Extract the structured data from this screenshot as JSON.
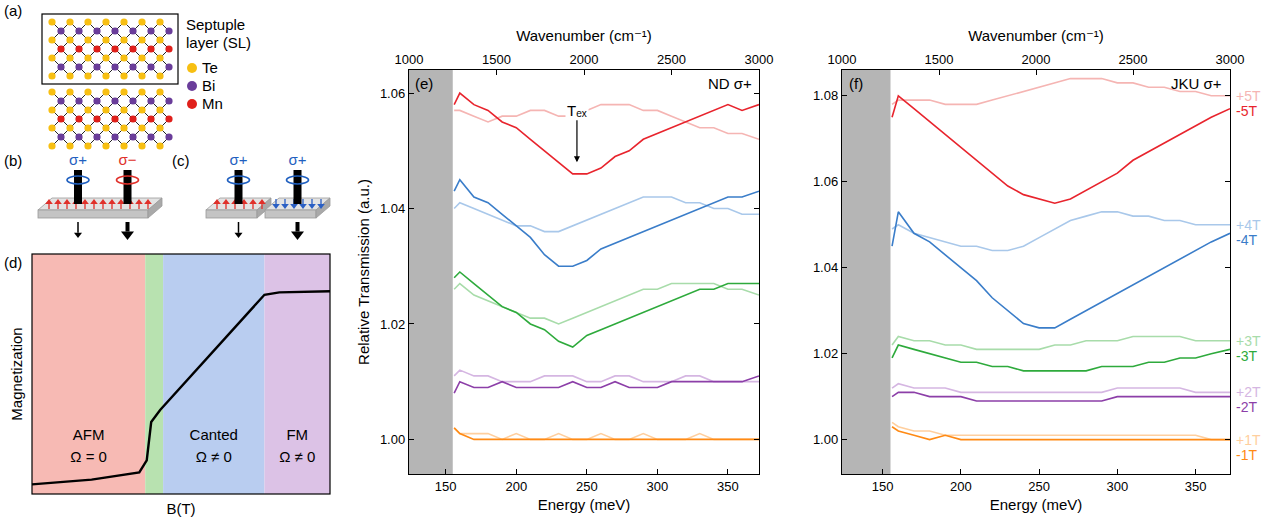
{
  "diagram": {
    "a": {
      "letter": "(a)",
      "box_label": "Septuple layer (SL)",
      "sequence": [
        "Te",
        "Bi",
        "Te",
        "Mn",
        "Te",
        "Bi",
        "Te"
      ],
      "atoms": [
        {
          "label": "Te",
          "color": "#f7bf12"
        },
        {
          "label": "Bi",
          "color": "#6a3d9a"
        },
        {
          "label": "Mn",
          "color": "#e0201b"
        }
      ]
    },
    "b": {
      "letter": "(b)",
      "beams": [
        {
          "label": "σ+",
          "color": "#1f5fbf"
        },
        {
          "label": "σ−",
          "color": "#e0302a"
        }
      ],
      "spins": [
        {
          "direction": "up",
          "color": "#e0302a"
        }
      ]
    },
    "c": {
      "letter": "(c)",
      "beams": [
        {
          "label": "σ+",
          "color": "#1f5fbf"
        },
        {
          "label": "σ+",
          "color": "#1f5fbf"
        }
      ],
      "spins": [
        {
          "direction": "up",
          "color": "#e0302a"
        },
        {
          "direction": "down",
          "color": "#2a5fc4"
        }
      ]
    },
    "d": {
      "letter": "(d)",
      "y_label": "Magnetization",
      "x_label": "B(T)",
      "phases": [
        {
          "label": "AFM",
          "note": "Ω = 0",
          "color": "#f7bab4"
        },
        {
          "color": "#b8e2b0"
        },
        {
          "label": "Canted",
          "note": "Ω ≠ 0",
          "color": "#b9cdf0"
        },
        {
          "label": "FM",
          "note": "Ω ≠ 0",
          "color": "#dcc2e6"
        }
      ]
    }
  },
  "chart_data": [
    {
      "type": "line",
      "letter": "(e)",
      "title": "ND σ+",
      "xlabel": "Energy (meV)",
      "x2label": "Wavenumber (cm⁻¹)",
      "ylabel": "Relative Transmission (a.u.)",
      "xlim": [
        124,
        372
      ],
      "xticks": [
        150,
        200,
        250,
        300,
        350
      ],
      "x2lim": [
        1000,
        3000
      ],
      "x2ticks": [
        1000,
        1500,
        2000,
        2500,
        3000
      ],
      "ylim": [
        0.994,
        1.064
      ],
      "yticks": [
        {
          "value": 1.0,
          "label": "1.00"
        },
        {
          "value": 1.02,
          "label": "1.02"
        },
        {
          "value": 1.04,
          "label": "1.04"
        },
        {
          "value": 1.06,
          "label": "1.06"
        }
      ],
      "grid": false,
      "shaded_x": [
        124,
        155
      ],
      "annotations": [
        {
          "text": "Tₑₓ",
          "x": 243,
          "y": 1.048
        }
      ],
      "x": [
        156,
        160,
        170,
        180,
        190,
        200,
        210,
        220,
        230,
        240,
        250,
        260,
        270,
        280,
        290,
        300,
        310,
        320,
        330,
        340,
        350,
        360,
        372
      ],
      "series": [
        {
          "color": "#f5b5b3",
          "values": [
            1.057,
            1.057,
            1.056,
            1.055,
            1.056,
            1.056,
            1.057,
            1.057,
            1.056,
            1.056,
            1.057,
            1.058,
            1.058,
            1.058,
            1.057,
            1.057,
            1.056,
            1.055,
            1.054,
            1.054,
            1.053,
            1.053,
            1.052
          ]
        },
        {
          "color": "#e8242d",
          "values": [
            1.058,
            1.06,
            1.058,
            1.057,
            1.055,
            1.054,
            1.052,
            1.05,
            1.048,
            1.046,
            1.046,
            1.047,
            1.049,
            1.05,
            1.052,
            1.053,
            1.054,
            1.055,
            1.056,
            1.057,
            1.058,
            1.057,
            1.058
          ]
        },
        {
          "color": "#a9c8ea",
          "values": [
            1.04,
            1.041,
            1.04,
            1.039,
            1.038,
            1.037,
            1.037,
            1.036,
            1.036,
            1.037,
            1.038,
            1.039,
            1.04,
            1.041,
            1.042,
            1.042,
            1.042,
            1.041,
            1.041,
            1.04,
            1.04,
            1.039,
            1.039
          ]
        },
        {
          "color": "#3a7dc9",
          "values": [
            1.043,
            1.045,
            1.042,
            1.041,
            1.039,
            1.037,
            1.035,
            1.032,
            1.03,
            1.03,
            1.031,
            1.033,
            1.034,
            1.035,
            1.036,
            1.037,
            1.038,
            1.039,
            1.04,
            1.041,
            1.042,
            1.042,
            1.043
          ]
        },
        {
          "color": "#a8dcaa",
          "values": [
            1.026,
            1.027,
            1.025,
            1.024,
            1.023,
            1.022,
            1.021,
            1.021,
            1.02,
            1.021,
            1.022,
            1.023,
            1.024,
            1.025,
            1.026,
            1.026,
            1.027,
            1.027,
            1.027,
            1.027,
            1.026,
            1.026,
            1.025
          ]
        },
        {
          "color": "#2eaa3c",
          "values": [
            1.028,
            1.029,
            1.027,
            1.025,
            1.023,
            1.022,
            1.02,
            1.019,
            1.017,
            1.016,
            1.018,
            1.019,
            1.02,
            1.021,
            1.022,
            1.023,
            1.024,
            1.025,
            1.026,
            1.026,
            1.027,
            1.027,
            1.027
          ]
        },
        {
          "color": "#d5b6e2",
          "values": [
            1.011,
            1.012,
            1.011,
            1.011,
            1.01,
            1.01,
            1.01,
            1.011,
            1.011,
            1.011,
            1.01,
            1.01,
            1.011,
            1.011,
            1.01,
            1.01,
            1.01,
            1.011,
            1.011,
            1.01,
            1.01,
            1.01,
            1.01
          ]
        },
        {
          "color": "#8c3fa8",
          "values": [
            1.008,
            1.01,
            1.009,
            1.009,
            1.01,
            1.009,
            1.009,
            1.009,
            1.009,
            1.01,
            1.009,
            1.009,
            1.01,
            1.009,
            1.009,
            1.009,
            1.01,
            1.01,
            1.01,
            1.01,
            1.01,
            1.01,
            1.011
          ]
        },
        {
          "color": "#ffcf9e",
          "values": [
            1.002,
            1.001,
            1.001,
            1.001,
            1.0,
            1.001,
            1.0,
            1.0,
            1.001,
            1.0,
            1.0,
            1.001,
            1.0,
            1.0,
            1.001,
            1.0,
            1.0,
            1.0,
            1.001,
            1.0,
            1.0,
            1.0,
            1.0
          ]
        },
        {
          "color": "#ff8a14",
          "values": [
            1.002,
            1.001,
            1.0,
            1.0,
            1.0,
            1.0,
            1.0,
            1.0,
            1.0,
            1.0,
            1.0,
            1.0,
            1.0,
            1.0,
            1.0,
            1.0,
            1.0,
            1.0,
            1.0,
            1.0,
            1.0,
            1.0,
            1.0
          ]
        }
      ]
    },
    {
      "type": "line",
      "letter": "(f)",
      "title": "JKU σ+",
      "xlabel": "Energy (meV)",
      "x2label": "Wavenumber (cm⁻¹)",
      "xlim": [
        124,
        372
      ],
      "xticks": [
        150,
        200,
        250,
        300,
        350
      ],
      "x2lim": [
        1000,
        3000
      ],
      "x2ticks": [
        1000,
        1500,
        2000,
        2500,
        3000
      ],
      "ylim": [
        0.992,
        1.086
      ],
      "yticks": [
        {
          "value": 1.0,
          "label": "1.00"
        },
        {
          "value": 1.02,
          "label": "1.02"
        },
        {
          "value": 1.04,
          "label": "1.04"
        },
        {
          "value": 1.06,
          "label": "1.06"
        },
        {
          "value": 1.08,
          "label": "1.08"
        }
      ],
      "grid": false,
      "shaded_x": [
        124,
        155
      ],
      "x": [
        156,
        160,
        170,
        180,
        190,
        200,
        210,
        220,
        230,
        240,
        250,
        260,
        270,
        280,
        290,
        300,
        310,
        320,
        330,
        340,
        350,
        360,
        372
      ],
      "series": [
        {
          "name": "+5T",
          "color": "#f5b5b3",
          "values": [
            1.078,
            1.079,
            1.079,
            1.079,
            1.078,
            1.078,
            1.078,
            1.079,
            1.08,
            1.081,
            1.082,
            1.083,
            1.084,
            1.084,
            1.084,
            1.083,
            1.083,
            1.082,
            1.082,
            1.081,
            1.081,
            1.08,
            1.08
          ]
        },
        {
          "name": "-5T",
          "color": "#e8242d",
          "values": [
            1.075,
            1.08,
            1.077,
            1.074,
            1.071,
            1.068,
            1.065,
            1.062,
            1.059,
            1.057,
            1.056,
            1.055,
            1.056,
            1.058,
            1.06,
            1.062,
            1.065,
            1.067,
            1.069,
            1.071,
            1.073,
            1.075,
            1.077
          ]
        },
        {
          "name": "+4T",
          "color": "#a9c8ea",
          "values": [
            1.049,
            1.05,
            1.048,
            1.047,
            1.046,
            1.045,
            1.045,
            1.044,
            1.044,
            1.045,
            1.047,
            1.049,
            1.051,
            1.052,
            1.053,
            1.053,
            1.052,
            1.052,
            1.051,
            1.051,
            1.05,
            1.05,
            1.05
          ]
        },
        {
          "name": "-4T",
          "color": "#3a7dc9",
          "values": [
            1.045,
            1.053,
            1.048,
            1.046,
            1.043,
            1.04,
            1.037,
            1.033,
            1.03,
            1.027,
            1.026,
            1.026,
            1.028,
            1.03,
            1.032,
            1.034,
            1.036,
            1.038,
            1.04,
            1.042,
            1.044,
            1.046,
            1.048
          ]
        },
        {
          "name": "+3T",
          "color": "#a8dcaa",
          "values": [
            1.022,
            1.024,
            1.023,
            1.023,
            1.022,
            1.022,
            1.021,
            1.021,
            1.021,
            1.021,
            1.021,
            1.022,
            1.022,
            1.023,
            1.023,
            1.023,
            1.024,
            1.024,
            1.024,
            1.024,
            1.023,
            1.023,
            1.023
          ]
        },
        {
          "name": "-3T",
          "color": "#2eaa3c",
          "values": [
            1.019,
            1.022,
            1.021,
            1.02,
            1.019,
            1.018,
            1.018,
            1.017,
            1.017,
            1.016,
            1.016,
            1.016,
            1.016,
            1.016,
            1.017,
            1.017,
            1.017,
            1.018,
            1.018,
            1.019,
            1.019,
            1.02,
            1.021
          ]
        },
        {
          "name": "+2T",
          "color": "#d5b6e2",
          "values": [
            1.012,
            1.013,
            1.012,
            1.012,
            1.012,
            1.011,
            1.011,
            1.011,
            1.011,
            1.011,
            1.011,
            1.011,
            1.011,
            1.011,
            1.011,
            1.012,
            1.012,
            1.012,
            1.012,
            1.012,
            1.011,
            1.011,
            1.011
          ]
        },
        {
          "name": "-2T",
          "color": "#8c3fa8",
          "values": [
            1.01,
            1.011,
            1.011,
            1.01,
            1.01,
            1.01,
            1.009,
            1.009,
            1.009,
            1.009,
            1.009,
            1.009,
            1.009,
            1.009,
            1.009,
            1.01,
            1.01,
            1.01,
            1.01,
            1.01,
            1.01,
            1.01,
            1.01
          ]
        },
        {
          "name": "+1T",
          "color": "#ffcf9e",
          "values": [
            1.004,
            1.003,
            1.002,
            1.002,
            1.001,
            1.001,
            1.001,
            1.001,
            1.001,
            1.001,
            1.001,
            1.001,
            1.001,
            1.001,
            1.001,
            1.001,
            1.001,
            1.001,
            1.001,
            1.001,
            1.001,
            1.0,
            1.0
          ]
        },
        {
          "name": "-1T",
          "color": "#ff8a14",
          "values": [
            1.003,
            1.002,
            1.001,
            1.0,
            1.001,
            1.0,
            1.0,
            1.0,
            1.0,
            1.0,
            1.0,
            1.0,
            1.0,
            1.0,
            1.0,
            1.0,
            1.0,
            1.0,
            1.0,
            1.0,
            1.0,
            1.0,
            1.0
          ]
        }
      ]
    }
  ]
}
